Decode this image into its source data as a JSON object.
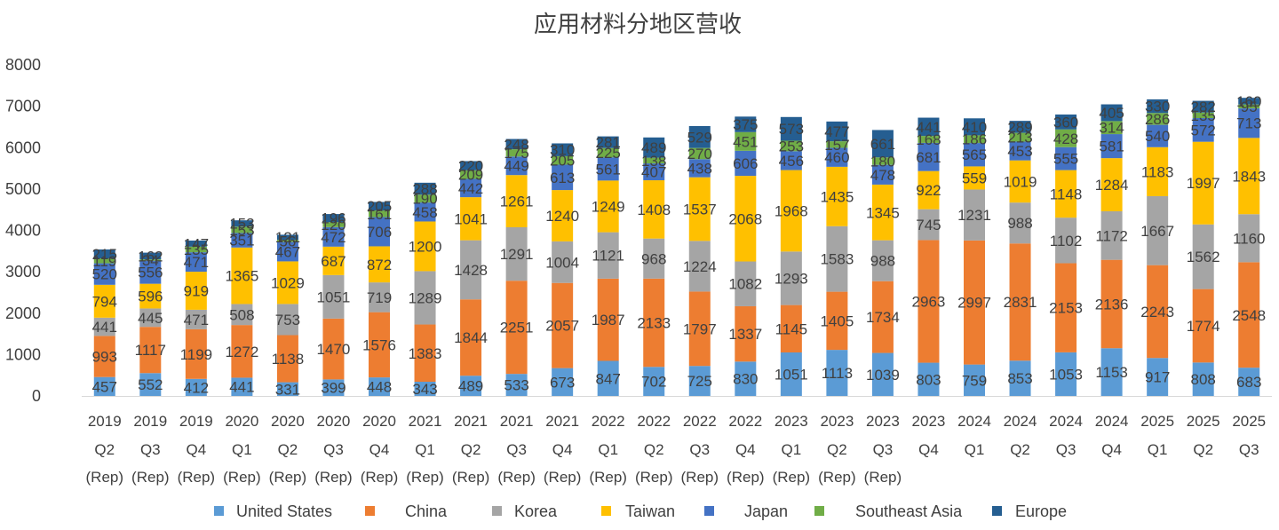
{
  "chart_data": {
    "type": "bar",
    "stacked": true,
    "title": "应用材料分地区营收",
    "categories": [
      [
        "2019",
        "Q2",
        "(Rep)"
      ],
      [
        "2019",
        "Q3",
        "(Rep)"
      ],
      [
        "2019",
        "Q4",
        "(Rep)"
      ],
      [
        "2020",
        "Q1",
        "(Rep)"
      ],
      [
        "2020",
        "Q2",
        "(Rep)"
      ],
      [
        "2020",
        "Q3",
        "(Rep)"
      ],
      [
        "2020",
        "Q4",
        "(Rep)"
      ],
      [
        "2021",
        "Q1",
        "(Rep)"
      ],
      [
        "2021",
        "Q2",
        "(Rep)"
      ],
      [
        "2021",
        "Q3",
        "(Rep)"
      ],
      [
        "2021",
        "Q4",
        "(Rep)"
      ],
      [
        "2022",
        "Q1",
        "(Rep)"
      ],
      [
        "2022",
        "Q2",
        "(Rep)"
      ],
      [
        "2022",
        "Q3",
        "(Rep)"
      ],
      [
        "2022",
        "Q4",
        "(Rep)"
      ],
      [
        "2023",
        "Q1",
        "(Rep)"
      ],
      [
        "2023",
        "Q2",
        "(Rep)"
      ],
      [
        "2023",
        "Q3",
        "(Rep)"
      ],
      [
        "2023",
        "Q4"
      ],
      [
        "2024",
        "Q1"
      ],
      [
        "2024",
        "Q2"
      ],
      [
        "2024",
        "Q3"
      ],
      [
        "2024",
        "Q4"
      ],
      [
        "2025",
        "Q1"
      ],
      [
        "2025",
        "Q2"
      ],
      [
        "2025",
        "Q3"
      ]
    ],
    "ylim": [
      0,
      8000
    ],
    "yticks": [
      0,
      1000,
      2000,
      3000,
      4000,
      5000,
      6000,
      7000,
      8000
    ],
    "grid": false,
    "legend_position": "bottom",
    "series": [
      {
        "name": "United States",
        "color": "#5B9BD5",
        "values": [
          457,
          552,
          412,
          441,
          331,
          399,
          448,
          343,
          489,
          533,
          673,
          847,
          702,
          725,
          830,
          1051,
          1113,
          1039,
          803,
          759,
          853,
          1053,
          1153,
          917,
          808,
          683
        ]
      },
      {
        "name": "China",
        "color": "#ED7D31",
        "values": [
          993,
          1117,
          1199,
          1272,
          1138,
          1470,
          1576,
          1383,
          1844,
          2251,
          2057,
          1987,
          2133,
          1797,
          1337,
          1145,
          1405,
          1734,
          2963,
          2997,
          2831,
          2153,
          2136,
          2243,
          1774,
          2548
        ]
      },
      {
        "name": "Korea",
        "color": "#A5A5A5",
        "values": [
          441,
          445,
          471,
          508,
          753,
          1051,
          719,
          1289,
          1428,
          1291,
          1004,
          1121,
          968,
          1224,
          1082,
          1293,
          1583,
          988,
          745,
          1231,
          988,
          1102,
          1172,
          1667,
          1562,
          1160
        ]
      },
      {
        "name": "Taiwan",
        "color": "#FFC000",
        "values": [
          794,
          596,
          919,
          1365,
          1029,
          687,
          872,
          1200,
          1041,
          1261,
          1240,
          1249,
          1408,
          1537,
          2068,
          1968,
          1435,
          1345,
          922,
          559,
          1019,
          1148,
          1284,
          1183,
          1997,
          1843
        ]
      },
      {
        "name": "Japan",
        "color": "#4472C4",
        "values": [
          520,
          556,
          471,
          351,
          467,
          472,
          706,
          458,
          442,
          449,
          613,
          561,
          407,
          438,
          606,
          456,
          460,
          478,
          681,
          565,
          453,
          555,
          581,
          540,
          572,
          713
        ]
      },
      {
        "name": "Southeast Asia",
        "color": "#70AD47",
        "values": [
          119,
          34,
          135,
          153,
          56,
          120,
          161,
          190,
          209,
          175,
          205,
          225,
          138,
          270,
          451,
          253,
          157,
          180,
          168,
          186,
          213,
          428,
          314,
          286,
          135,
          95
        ]
      },
      {
        "name": "Europe",
        "color": "#255E91",
        "values": [
          215,
          162,
          147,
          153,
          121,
          196,
          205,
          288,
          220,
          248,
          310,
          281,
          489,
          529,
          375,
          573,
          477,
          661,
          441,
          410,
          289,
          360,
          405,
          330,
          282,
          160
        ]
      }
    ]
  }
}
